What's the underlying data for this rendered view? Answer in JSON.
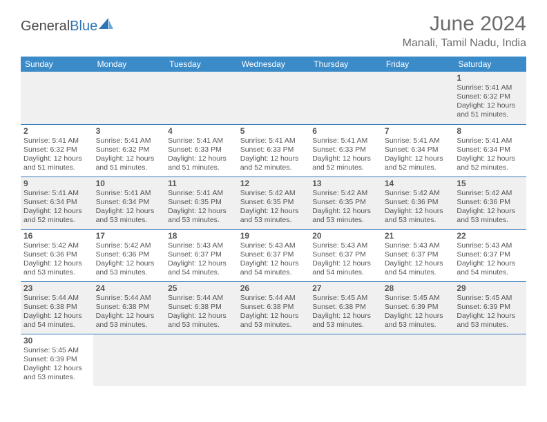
{
  "logo": {
    "text1": "General",
    "text2": "Blue",
    "color1": "#4a4a4a",
    "color2": "#2e75b6"
  },
  "title": "June 2024",
  "location": "Manali, Tamil Nadu, India",
  "header_bg": "#3b8bc9",
  "row_border": "#2e75b6",
  "alt_row_bg": "#f0f0f0",
  "day_names": [
    "Sunday",
    "Monday",
    "Tuesday",
    "Wednesday",
    "Thursday",
    "Friday",
    "Saturday"
  ],
  "first_weekday": 6,
  "days": [
    {
      "n": 1,
      "sunrise": "5:41 AM",
      "sunset": "6:32 PM",
      "dl_h": 12,
      "dl_m": 51
    },
    {
      "n": 2,
      "sunrise": "5:41 AM",
      "sunset": "6:32 PM",
      "dl_h": 12,
      "dl_m": 51
    },
    {
      "n": 3,
      "sunrise": "5:41 AM",
      "sunset": "6:32 PM",
      "dl_h": 12,
      "dl_m": 51
    },
    {
      "n": 4,
      "sunrise": "5:41 AM",
      "sunset": "6:33 PM",
      "dl_h": 12,
      "dl_m": 51
    },
    {
      "n": 5,
      "sunrise": "5:41 AM",
      "sunset": "6:33 PM",
      "dl_h": 12,
      "dl_m": 52
    },
    {
      "n": 6,
      "sunrise": "5:41 AM",
      "sunset": "6:33 PM",
      "dl_h": 12,
      "dl_m": 52
    },
    {
      "n": 7,
      "sunrise": "5:41 AM",
      "sunset": "6:34 PM",
      "dl_h": 12,
      "dl_m": 52
    },
    {
      "n": 8,
      "sunrise": "5:41 AM",
      "sunset": "6:34 PM",
      "dl_h": 12,
      "dl_m": 52
    },
    {
      "n": 9,
      "sunrise": "5:41 AM",
      "sunset": "6:34 PM",
      "dl_h": 12,
      "dl_m": 52
    },
    {
      "n": 10,
      "sunrise": "5:41 AM",
      "sunset": "6:34 PM",
      "dl_h": 12,
      "dl_m": 53
    },
    {
      "n": 11,
      "sunrise": "5:41 AM",
      "sunset": "6:35 PM",
      "dl_h": 12,
      "dl_m": 53
    },
    {
      "n": 12,
      "sunrise": "5:42 AM",
      "sunset": "6:35 PM",
      "dl_h": 12,
      "dl_m": 53
    },
    {
      "n": 13,
      "sunrise": "5:42 AM",
      "sunset": "6:35 PM",
      "dl_h": 12,
      "dl_m": 53
    },
    {
      "n": 14,
      "sunrise": "5:42 AM",
      "sunset": "6:36 PM",
      "dl_h": 12,
      "dl_m": 53
    },
    {
      "n": 15,
      "sunrise": "5:42 AM",
      "sunset": "6:36 PM",
      "dl_h": 12,
      "dl_m": 53
    },
    {
      "n": 16,
      "sunrise": "5:42 AM",
      "sunset": "6:36 PM",
      "dl_h": 12,
      "dl_m": 53
    },
    {
      "n": 17,
      "sunrise": "5:42 AM",
      "sunset": "6:36 PM",
      "dl_h": 12,
      "dl_m": 53
    },
    {
      "n": 18,
      "sunrise": "5:43 AM",
      "sunset": "6:37 PM",
      "dl_h": 12,
      "dl_m": 54
    },
    {
      "n": 19,
      "sunrise": "5:43 AM",
      "sunset": "6:37 PM",
      "dl_h": 12,
      "dl_m": 54
    },
    {
      "n": 20,
      "sunrise": "5:43 AM",
      "sunset": "6:37 PM",
      "dl_h": 12,
      "dl_m": 54
    },
    {
      "n": 21,
      "sunrise": "5:43 AM",
      "sunset": "6:37 PM",
      "dl_h": 12,
      "dl_m": 54
    },
    {
      "n": 22,
      "sunrise": "5:43 AM",
      "sunset": "6:37 PM",
      "dl_h": 12,
      "dl_m": 54
    },
    {
      "n": 23,
      "sunrise": "5:44 AM",
      "sunset": "6:38 PM",
      "dl_h": 12,
      "dl_m": 54
    },
    {
      "n": 24,
      "sunrise": "5:44 AM",
      "sunset": "6:38 PM",
      "dl_h": 12,
      "dl_m": 53
    },
    {
      "n": 25,
      "sunrise": "5:44 AM",
      "sunset": "6:38 PM",
      "dl_h": 12,
      "dl_m": 53
    },
    {
      "n": 26,
      "sunrise": "5:44 AM",
      "sunset": "6:38 PM",
      "dl_h": 12,
      "dl_m": 53
    },
    {
      "n": 27,
      "sunrise": "5:45 AM",
      "sunset": "6:38 PM",
      "dl_h": 12,
      "dl_m": 53
    },
    {
      "n": 28,
      "sunrise": "5:45 AM",
      "sunset": "6:39 PM",
      "dl_h": 12,
      "dl_m": 53
    },
    {
      "n": 29,
      "sunrise": "5:45 AM",
      "sunset": "6:39 PM",
      "dl_h": 12,
      "dl_m": 53
    },
    {
      "n": 30,
      "sunrise": "5:45 AM",
      "sunset": "6:39 PM",
      "dl_h": 12,
      "dl_m": 53
    }
  ],
  "labels": {
    "sunrise": "Sunrise:",
    "sunset": "Sunset:",
    "daylight_prefix": "Daylight:",
    "hours_word": "hours",
    "and_word": "and",
    "minutes_word": "minutes."
  }
}
